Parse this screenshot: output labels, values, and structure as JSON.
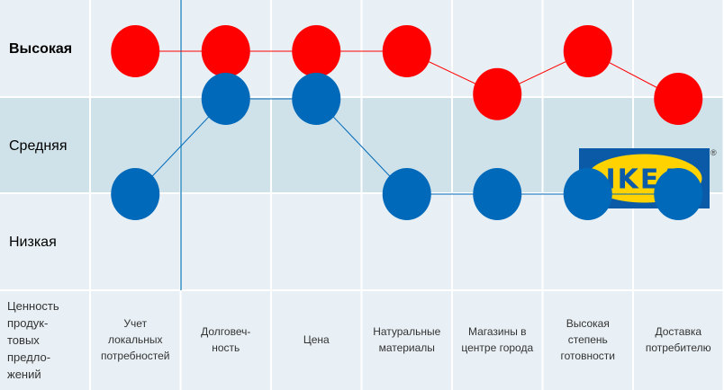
{
  "chart_data": {
    "type": "line",
    "levels": [
      "Высокая",
      "Средняя",
      "Низкая"
    ],
    "corner_label": [
      "Ценность",
      "продук-",
      "товых",
      "предло-",
      "жений"
    ],
    "categories": [
      [
        "Учет",
        "локальных",
        "потребностей"
      ],
      [
        "Долговеч-",
        "ность"
      ],
      [
        "Цена"
      ],
      [
        "Натуральные",
        "материалы"
      ],
      [
        "Магазины в",
        "центре города"
      ],
      [
        "Высокая",
        "степень",
        "готовности"
      ],
      [
        "Доставка",
        "потребителю"
      ]
    ],
    "series": [
      {
        "values": [
          3,
          3,
          3,
          3,
          2.55,
          3,
          2.5
        ],
        "color": "#ff0000"
      },
      {
        "values": [
          1.5,
          2.5,
          2.5,
          1.5,
          1.5,
          1.5,
          1.5
        ],
        "color": "#0069b9"
      }
    ],
    "ylim": [
      1,
      3
    ]
  },
  "logo": {
    "text": "IKEA",
    "registered": "®",
    "blue": "#0a5aa8",
    "yellow": "#ffd200"
  },
  "colors": {
    "row_light": "#e8f0f5",
    "row_dark": "#cfe2ea",
    "grid": "#ffffff",
    "vline": "#3a91c4"
  }
}
